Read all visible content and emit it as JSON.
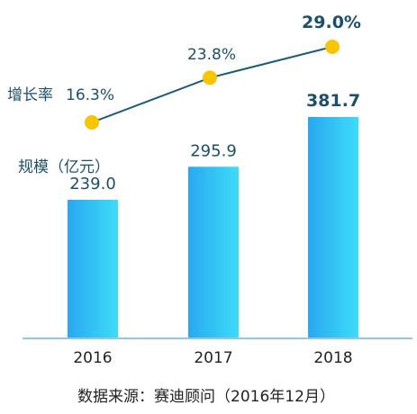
{
  "chart_data": {
    "type": "bar",
    "categories": [
      "2016",
      "2017",
      "2018"
    ],
    "series": [
      {
        "name": "规模（亿元）",
        "values": [
          239.0,
          295.9,
          381.7
        ],
        "labels": [
          "239.0",
          "295.9",
          "381.7"
        ]
      },
      {
        "name": "增长率",
        "type": "line",
        "values": [
          16.3,
          23.8,
          29.0
        ],
        "labels": [
          "16.3%",
          "23.8%",
          "29.0%"
        ]
      }
    ],
    "bar_value_range": [
      0,
      430
    ],
    "line_value_range": [
      0,
      36
    ],
    "grid": false,
    "colors": {
      "bar_top": "#3ddcf8",
      "bar_bottom": "#29a8f0",
      "line": "#1a5c7a",
      "marker": "#f7c600",
      "text_dark": "#1d4f6b",
      "axis": "#8fc9e8"
    }
  },
  "labels": {
    "scale_label": "规模（亿元）",
    "growth_label": "增长率",
    "source": "数据来源：赛迪顾问（2016年12月）"
  }
}
